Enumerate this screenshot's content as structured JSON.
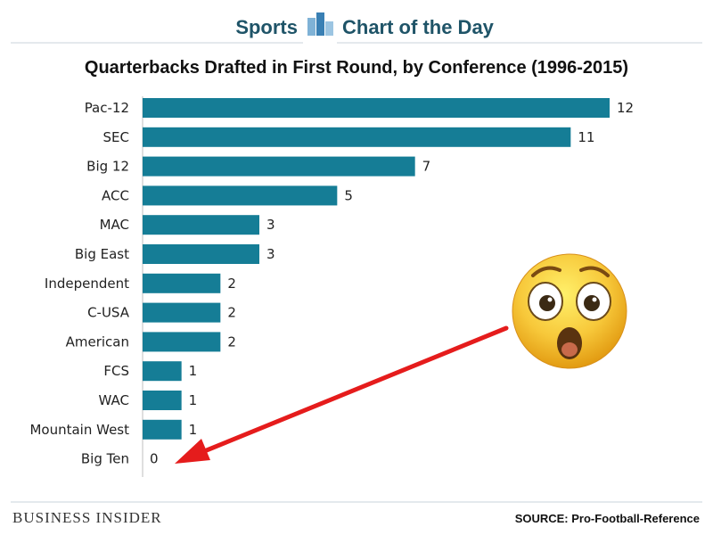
{
  "header": {
    "brand_left": "Sports",
    "brand_right": "Chart of the Day",
    "icon": "bar-chart-icon",
    "brand_color": "#1f5468"
  },
  "chart_data": {
    "type": "bar",
    "orientation": "horizontal",
    "title": "Quarterbacks Drafted in First Round, by Conference (1996-2015)",
    "categories": [
      "Pac-12",
      "SEC",
      "Big 12",
      "ACC",
      "MAC",
      "Big East",
      "Independent",
      "C-USA",
      "American",
      "FCS",
      "WAC",
      "Mountain West",
      "Big Ten"
    ],
    "values": [
      12,
      11,
      7,
      5,
      3,
      3,
      2,
      2,
      2,
      1,
      1,
      1,
      0
    ],
    "xlim": [
      0,
      12
    ],
    "bar_color": "#157d96",
    "grid": false,
    "legend": "none"
  },
  "annotation": {
    "emoji": "astonished-face-emoji",
    "arrow_color": "#e51c1c",
    "arrow_target": "Big Ten"
  },
  "footer": {
    "logo": "BUSINESS INSIDER",
    "source": "SOURCE: Pro-Football-Reference"
  }
}
